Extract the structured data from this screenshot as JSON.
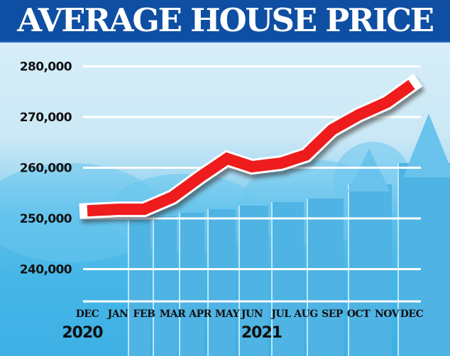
{
  "chart_data": {
    "type": "line",
    "title": "AVERAGE HOUSE PRICE",
    "xlabel": "",
    "ylabel": "",
    "categories": [
      "DEC",
      "JAN",
      "FEB",
      "MAR",
      "APR",
      "MAY",
      "JUN",
      "JUL",
      "AUG",
      "SEP",
      "OCT",
      "NOV",
      "DEC"
    ],
    "year_labels": [
      {
        "label": "2020",
        "category_index": 0
      },
      {
        "label": "2021",
        "category_index": 6.5
      }
    ],
    "series": [
      {
        "name": "Average house price",
        "color": "#ee1c1c",
        "values": [
          251500,
          251800,
          251800,
          254200,
          258200,
          261800,
          260200,
          260900,
          262500,
          267500,
          270400,
          272900,
          276400
        ]
      }
    ],
    "yticks": [
      240000,
      250000,
      260000,
      270000,
      280000
    ],
    "ytick_labels": [
      "240,000",
      "250,000",
      "260,000",
      "270,000",
      "280,000"
    ],
    "ylim": [
      233700,
      281000
    ],
    "grid": true,
    "legend": "none"
  },
  "colors": {
    "header_bg": "#0f4fa3",
    "line": "#ee1c1c",
    "grid": "#ffffff"
  }
}
